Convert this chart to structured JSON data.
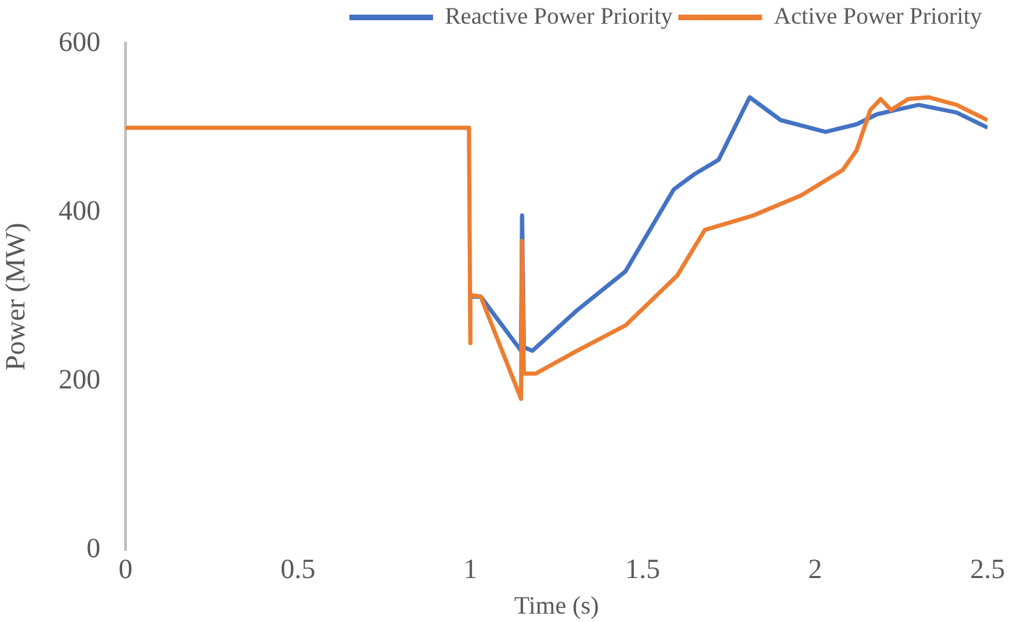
{
  "chart_data": {
    "type": "line",
    "xlabel": "Time (s)",
    "ylabel": "Power (MW)",
    "xlim": [
      0,
      2.5
    ],
    "xticks": [
      0,
      0.5,
      1,
      1.5,
      2,
      2.5
    ],
    "ylim": [
      0,
      600
    ],
    "yticks": [
      0,
      200,
      400,
      600
    ],
    "grid": false,
    "legend": "top right",
    "marker": "none",
    "line_style": "solid",
    "series": [
      {
        "name": "Reactive Power Priority",
        "color": "#4472c4",
        "x": [
          1.0,
          1.03,
          1.147,
          1.15,
          1.155,
          1.18,
          1.31,
          1.45,
          1.59,
          1.65,
          1.72,
          1.81,
          1.9,
          2.03,
          2.12,
          2.18,
          2.3,
          2.41,
          2.5
        ],
        "values": [
          300,
          300,
          236,
          396,
          240,
          236,
          284,
          330,
          427,
          445,
          462,
          536,
          509,
          495,
          504,
          516,
          527,
          518,
          500
        ]
      },
      {
        "name": "Active Power Priority",
        "color": "#ed7d31",
        "x": [
          0,
          0.996,
          1.0,
          1.0,
          1.03,
          1.147,
          1.15,
          1.155,
          1.19,
          1.31,
          1.45,
          1.6,
          1.68,
          1.82,
          1.96,
          2.08,
          2.12,
          2.16,
          2.19,
          2.22,
          2.27,
          2.33,
          2.41,
          2.5
        ],
        "values": [
          500,
          500,
          245,
          302,
          300,
          179,
          366,
          209,
          209,
          236,
          266,
          325,
          379,
          396,
          420,
          450,
          473,
          521,
          534,
          521,
          534,
          536,
          527,
          509
        ]
      }
    ]
  }
}
